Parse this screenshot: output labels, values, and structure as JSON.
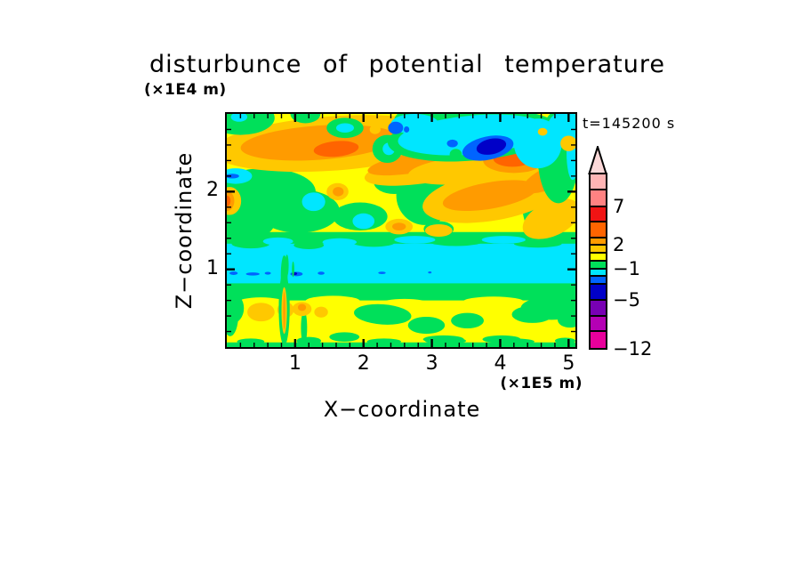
{
  "chart_data": {
    "type": "filled_contour",
    "title": "disturbunce of potential temperature",
    "time_label": "t=145200 s",
    "xlabel": "X−coordinate",
    "ylabel": "Z−coordinate",
    "x_units": "(×1E5 m)",
    "y_units": "(×1E4 m)",
    "xlim": [
      0,
      5.1
    ],
    "ylim": [
      0,
      3.0
    ],
    "x_major_ticks": [
      1,
      2,
      3,
      4,
      5
    ],
    "x_minor_step": 0.2,
    "y_major_ticks": [
      1,
      2
    ],
    "y_minor_step": 0.2,
    "grid": false,
    "levels": [
      -12,
      -9,
      -7,
      -5,
      -3,
      -2,
      -1,
      0,
      1,
      2,
      3,
      5,
      7,
      9,
      11
    ],
    "level_colors": [
      "m3",
      "m2",
      "m1",
      "db",
      "bl",
      "cy",
      "gr",
      "ye",
      "go",
      "or",
      "do",
      "re",
      "sa",
      "pi"
    ],
    "palette": {
      "m3": "#E8009B",
      "m2": "#B400B4",
      "m1": "#7800B4",
      "db": "#0000C8",
      "bl": "#0064FF",
      "cy": "#00E6FF",
      "gr": "#00E05A",
      "ye": "#FFFF00",
      "go": "#FFC800",
      "or": "#FF9B00",
      "do": "#FF6400",
      "re": "#F01414",
      "sa": "#FF8282",
      "pi": "#FFB4B4",
      "tip": "#FBD8D8"
    },
    "colorbar": {
      "arrow_color": "tip",
      "segments": [
        {
          "c": "pi",
          "h": 18
        },
        {
          "c": "sa",
          "h": 19
        },
        {
          "c": "re",
          "h": 17
        },
        {
          "c": "do",
          "h": 18
        },
        {
          "c": "or",
          "h": 8
        },
        {
          "c": "go",
          "h": 9
        },
        {
          "c": "ye",
          "h": 9
        },
        {
          "c": "gr",
          "h": 9
        },
        {
          "c": "cy",
          "h": 8
        },
        {
          "c": "bl",
          "h": 9
        },
        {
          "c": "db",
          "h": 18
        },
        {
          "c": "m1",
          "h": 18
        },
        {
          "c": "m2",
          "h": 17
        },
        {
          "c": "m3",
          "h": 20
        }
      ],
      "labels": [
        {
          "t": "7",
          "b": 2
        },
        {
          "t": "2",
          "b": 5
        },
        {
          "t": "−1",
          "b": 8
        },
        {
          "t": "−5",
          "b": 11
        },
        {
          "t": "−12",
          "b": 14
        }
      ]
    },
    "field_shapes": [
      {
        "s": "r",
        "c": "ye",
        "x": 0,
        "z": 0,
        "w": 5.1,
        "h": 3
      },
      {
        "s": "r",
        "c": "gr",
        "x": 0,
        "z": 0.6,
        "w": 5.1,
        "h": 0.88
      },
      {
        "s": "e",
        "c": "ye",
        "x": 0.5,
        "z": 0.57,
        "rx": 0.35,
        "rz": 0.07
      },
      {
        "s": "e",
        "c": "ye",
        "x": 1.55,
        "z": 0.59,
        "rx": 0.4,
        "rz": 0.07
      },
      {
        "s": "e",
        "c": "ye",
        "x": 2.6,
        "z": 0.56,
        "rx": 0.35,
        "rz": 0.06
      },
      {
        "s": "e",
        "c": "ye",
        "x": 3.9,
        "z": 0.58,
        "rx": 0.45,
        "rz": 0.07
      },
      {
        "s": "e",
        "c": "gr",
        "x": 0.07,
        "z": 0.5,
        "rx": 0.18,
        "rz": 0.2
      },
      {
        "s": "e",
        "c": "gr",
        "x": 4.75,
        "z": 0.5,
        "rx": 0.45,
        "rz": 0.15
      },
      {
        "s": "r",
        "c": "cy",
        "x": 0,
        "z": 0.82,
        "w": 5.1,
        "h": 0.51
      },
      {
        "s": "e",
        "c": "gr",
        "x": 0.35,
        "z": 1.33,
        "rx": 0.28,
        "rz": 0.06
      },
      {
        "s": "e",
        "c": "gr",
        "x": 1.2,
        "z": 1.31,
        "rx": 0.22,
        "rz": 0.05
      },
      {
        "s": "e",
        "c": "gr",
        "x": 2.15,
        "z": 1.34,
        "rx": 0.3,
        "rz": 0.05
      },
      {
        "s": "e",
        "c": "gr",
        "x": 3.35,
        "z": 1.36,
        "rx": 0.4,
        "rz": 0.06
      },
      {
        "s": "e",
        "c": "gr",
        "x": 4.55,
        "z": 1.33,
        "rx": 0.35,
        "rz": 0.05
      },
      {
        "s": "e",
        "c": "cy",
        "x": 0.75,
        "z": 1.36,
        "rx": 0.22,
        "rz": 0.05
      },
      {
        "s": "e",
        "c": "cy",
        "x": 1.65,
        "z": 1.35,
        "rx": 0.25,
        "rz": 0.05
      },
      {
        "s": "e",
        "c": "cy",
        "x": 2.75,
        "z": 1.38,
        "rx": 0.3,
        "rz": 0.05
      },
      {
        "s": "e",
        "c": "cy",
        "x": 4.05,
        "z": 1.38,
        "rx": 0.32,
        "rz": 0.05
      },
      {
        "s": "e",
        "c": "bl",
        "x": 0.1,
        "z": 0.95,
        "rx": 0.06,
        "rz": 0.022
      },
      {
        "s": "e",
        "c": "bl",
        "x": 0.38,
        "z": 0.94,
        "rx": 0.1,
        "rz": 0.02
      },
      {
        "s": "e",
        "c": "bl",
        "x": 0.6,
        "z": 0.95,
        "rx": 0.045,
        "rz": 0.018
      },
      {
        "s": "e",
        "c": "bl",
        "x": 1.02,
        "z": 0.94,
        "rx": 0.09,
        "rz": 0.028
      },
      {
        "s": "e",
        "c": "db",
        "x": 0.99,
        "z": 0.945,
        "rx": 0.04,
        "rz": 0.018
      },
      {
        "s": "e",
        "c": "bl",
        "x": 1.38,
        "z": 0.95,
        "rx": 0.05,
        "rz": 0.02
      },
      {
        "s": "e",
        "c": "bl",
        "x": 2.27,
        "z": 0.955,
        "rx": 0.055,
        "rz": 0.016
      },
      {
        "s": "e",
        "c": "bl",
        "x": 2.97,
        "z": 0.96,
        "rx": 0.025,
        "rz": 0.013
      },
      {
        "s": "e",
        "c": "gr",
        "x": 0.88,
        "z": 1.05,
        "rx": 0.025,
        "rz": 0.14
      },
      {
        "s": "e",
        "c": "gr",
        "x": 0.97,
        "z": 1.0,
        "rx": 0.018,
        "rz": 0.1
      },
      {
        "s": "e",
        "c": "bl",
        "x": 0.84,
        "z": 0.8,
        "rx": 0.018,
        "rz": 0.05
      },
      {
        "s": "r",
        "c": "gr",
        "x": 0,
        "z": 0,
        "w": 5.1,
        "h": 0.06
      },
      {
        "s": "e",
        "c": "gr",
        "x": 0.35,
        "z": 0.07,
        "rx": 0.2,
        "rz": 0.04
      },
      {
        "s": "e",
        "c": "gr",
        "x": 1.2,
        "z": 0.08,
        "rx": 0.18,
        "rz": 0.05
      },
      {
        "s": "e",
        "c": "gr",
        "x": 2.3,
        "z": 0.07,
        "rx": 0.25,
        "rz": 0.04
      },
      {
        "s": "e",
        "c": "gr",
        "x": 3.2,
        "z": 0.08,
        "rx": 0.3,
        "rz": 0.045
      },
      {
        "s": "e",
        "c": "gr",
        "x": 4.2,
        "z": 0.07,
        "rx": 0.3,
        "rz": 0.04
      },
      {
        "s": "e",
        "c": "gr",
        "x": 4.95,
        "z": 0.08,
        "rx": 0.15,
        "rz": 0.04
      },
      {
        "s": "e",
        "c": "gr",
        "x": 2.28,
        "z": 0.42,
        "rx": 0.42,
        "rz": 0.13,
        "a": 4
      },
      {
        "s": "e",
        "c": "gr",
        "x": 2.92,
        "z": 0.28,
        "rx": 0.27,
        "rz": 0.11
      },
      {
        "s": "e",
        "c": "gr",
        "x": 3.52,
        "z": 0.34,
        "rx": 0.24,
        "rz": 0.1
      },
      {
        "s": "e",
        "c": "gr",
        "x": 4.47,
        "z": 0.42,
        "rx": 0.3,
        "rz": 0.11
      },
      {
        "s": "e",
        "c": "gr",
        "x": 5.02,
        "z": 0.35,
        "rx": 0.18,
        "rz": 0.1
      },
      {
        "s": "e",
        "c": "gr",
        "x": 1.72,
        "z": 0.13,
        "rx": 0.22,
        "rz": 0.06
      },
      {
        "s": "e",
        "c": "gr",
        "x": 3.17,
        "z": 0.1,
        "rx": 0.3,
        "rz": 0.05
      },
      {
        "s": "e",
        "c": "gr",
        "x": 4.02,
        "z": 0.1,
        "rx": 0.28,
        "rz": 0.05
      },
      {
        "s": "e",
        "c": "gr",
        "x": 1.13,
        "z": 0.25,
        "rx": 0.045,
        "rz": 0.22
      },
      {
        "s": "e",
        "c": "gr",
        "x": 0.05,
        "z": 0.42,
        "rx": 0.12,
        "rz": 0.28
      },
      {
        "s": "e",
        "c": "go",
        "x": 0.5,
        "z": 0.45,
        "rx": 0.2,
        "rz": 0.12
      },
      {
        "s": "e",
        "c": "go",
        "x": 0.86,
        "z": 0.48,
        "rx": 0.12,
        "rz": 0.1
      },
      {
        "s": "e",
        "c": "go",
        "x": 1.1,
        "z": 0.49,
        "rx": 0.14,
        "rz": 0.09
      },
      {
        "s": "e",
        "c": "or",
        "x": 1.1,
        "z": 0.51,
        "rx": 0.06,
        "rz": 0.045
      },
      {
        "s": "e",
        "c": "go",
        "x": 1.38,
        "z": 0.45,
        "rx": 0.1,
        "rz": 0.07
      },
      {
        "s": "e",
        "c": "gr",
        "x": 0.84,
        "z": 0.5,
        "rx": 0.08,
        "rz": 0.48
      },
      {
        "s": "e",
        "c": "gr",
        "x": 0.84,
        "z": 0.92,
        "rx": 0.05,
        "rz": 0.26
      },
      {
        "s": "e",
        "c": "go",
        "x": 0.84,
        "z": 0.47,
        "rx": 0.04,
        "rz": 0.3
      },
      {
        "s": "e",
        "c": "or",
        "x": 0.84,
        "z": 0.47,
        "rx": 0.016,
        "rz": 0.24
      },
      {
        "s": "e",
        "c": "gr",
        "x": 0.55,
        "z": 2.0,
        "rx": 0.75,
        "rz": 0.3
      },
      {
        "s": "e",
        "c": "gr",
        "x": 1.05,
        "z": 1.75,
        "rx": 0.6,
        "rz": 0.28
      },
      {
        "s": "e",
        "c": "gr",
        "x": 0.25,
        "z": 1.6,
        "rx": 0.45,
        "rz": 0.22
      },
      {
        "s": "e",
        "c": "gr",
        "x": 1.95,
        "z": 1.68,
        "rx": 0.4,
        "rz": 0.18
      },
      {
        "s": "e",
        "c": "gr",
        "x": 2.9,
        "z": 1.95,
        "rx": 0.42,
        "rz": 0.38
      },
      {
        "s": "e",
        "c": "gr",
        "x": 2.45,
        "z": 2.12,
        "rx": 0.3,
        "rz": 0.15
      },
      {
        "s": "e",
        "c": "gr",
        "x": 4.6,
        "z": 1.85,
        "rx": 0.28,
        "rz": 0.45
      },
      {
        "s": "e",
        "c": "gr",
        "x": 3.1,
        "z": 1.52,
        "rx": 0.22,
        "rz": 0.1
      },
      {
        "s": "e",
        "c": "cy",
        "x": 0.13,
        "z": 2.2,
        "rx": 0.24,
        "rz": 0.1
      },
      {
        "s": "e",
        "c": "bl",
        "x": 0.08,
        "z": 2.2,
        "rx": 0.1,
        "rz": 0.03
      },
      {
        "s": "e",
        "c": "cy",
        "x": 1.27,
        "z": 1.87,
        "rx": 0.17,
        "rz": 0.12
      },
      {
        "s": "e",
        "c": "cy",
        "x": 2.0,
        "z": 1.62,
        "rx": 0.16,
        "rz": 0.1
      },
      {
        "s": "e",
        "c": "go",
        "x": 0.04,
        "z": 1.88,
        "rx": 0.17,
        "rz": 0.18
      },
      {
        "s": "e",
        "c": "or",
        "x": 0.0,
        "z": 1.88,
        "rx": 0.11,
        "rz": 0.13
      },
      {
        "s": "e",
        "c": "do",
        "x": 0.0,
        "z": 1.88,
        "rx": 0.055,
        "rz": 0.07
      },
      {
        "s": "e",
        "c": "go",
        "x": 1.62,
        "z": 2.0,
        "rx": 0.16,
        "rz": 0.11
      },
      {
        "s": "e",
        "c": "or",
        "x": 1.63,
        "z": 2.0,
        "rx": 0.08,
        "rz": 0.06
      },
      {
        "s": "e",
        "c": "go",
        "x": 2.52,
        "z": 1.55,
        "rx": 0.2,
        "rz": 0.1
      },
      {
        "s": "e",
        "c": "or",
        "x": 2.52,
        "z": 1.55,
        "rx": 0.1,
        "rz": 0.05
      },
      {
        "s": "e",
        "c": "go",
        "x": 3.9,
        "z": 1.95,
        "rx": 1.05,
        "rz": 0.32,
        "a": -10
      },
      {
        "s": "e",
        "c": "go",
        "x": 4.75,
        "z": 1.65,
        "rx": 0.45,
        "rz": 0.22,
        "a": -25
      },
      {
        "s": "e",
        "c": "or",
        "x": 3.85,
        "z": 1.95,
        "rx": 0.7,
        "rz": 0.17,
        "a": -10
      },
      {
        "s": "e",
        "c": "or",
        "x": 4.72,
        "z": 2.18,
        "rx": 0.42,
        "rz": 0.14,
        "a": -25
      },
      {
        "s": "e",
        "c": "go",
        "x": 4.9,
        "z": 2.33,
        "rx": 0.28,
        "rz": 0.2
      },
      {
        "s": "e",
        "c": "or",
        "x": 4.95,
        "z": 2.28,
        "rx": 0.1,
        "rz": 0.07
      },
      {
        "s": "e",
        "c": "go",
        "x": 3.1,
        "z": 1.5,
        "rx": 0.2,
        "rz": 0.08
      },
      {
        "s": "e",
        "c": "go",
        "x": 1.55,
        "z": 2.62,
        "rx": 1.75,
        "rz": 0.35,
        "a": -4
      },
      {
        "s": "e",
        "c": "go",
        "x": 3.05,
        "z": 2.33,
        "rx": 1.05,
        "rz": 0.2,
        "a": -10
      },
      {
        "s": "e",
        "c": "or",
        "x": 1.35,
        "z": 2.63,
        "rx": 1.15,
        "rz": 0.22,
        "a": -4
      },
      {
        "s": "e",
        "c": "or",
        "x": 2.8,
        "z": 2.38,
        "rx": 0.75,
        "rz": 0.13,
        "a": -10
      },
      {
        "s": "e",
        "c": "do",
        "x": 1.6,
        "z": 2.55,
        "rx": 0.33,
        "rz": 0.1,
        "a": -5
      },
      {
        "s": "e",
        "c": "go",
        "x": 3.55,
        "z": 2.28,
        "rx": 0.9,
        "rz": 0.18,
        "a": -5
      },
      {
        "s": "e",
        "c": "or",
        "x": 4.2,
        "z": 2.4,
        "rx": 0.45,
        "rz": 0.16
      },
      {
        "s": "e",
        "c": "do",
        "x": 4.18,
        "z": 2.42,
        "rx": 0.28,
        "rz": 0.1
      },
      {
        "s": "e",
        "c": "gr",
        "x": 0.2,
        "z": 2.95,
        "rx": 0.5,
        "rz": 0.22
      },
      {
        "s": "e",
        "c": "cy",
        "x": 0.18,
        "z": 2.96,
        "rx": 0.12,
        "rz": 0.06
      },
      {
        "s": "e",
        "c": "gr",
        "x": 1.73,
        "z": 2.82,
        "rx": 0.27,
        "rz": 0.13
      },
      {
        "s": "e",
        "c": "cy",
        "x": 1.73,
        "z": 2.82,
        "rx": 0.13,
        "rz": 0.06
      },
      {
        "s": "e",
        "c": "gr",
        "x": 1.15,
        "z": 3.0,
        "rx": 0.22,
        "rz": 0.12
      },
      {
        "s": "e",
        "c": "gr",
        "x": 2.35,
        "z": 2.55,
        "rx": 0.22,
        "rz": 0.18
      },
      {
        "s": "e",
        "c": "cy",
        "x": 2.37,
        "z": 2.55,
        "rx": 0.09,
        "rz": 0.08
      },
      {
        "s": "e",
        "c": "go",
        "x": 2.17,
        "z": 2.8,
        "rx": 0.08,
        "rz": 0.06
      },
      {
        "s": "e",
        "c": "gr",
        "x": 2.9,
        "z": 2.92,
        "rx": 0.45,
        "rz": 0.18
      },
      {
        "s": "e",
        "c": "gr",
        "x": 3.6,
        "z": 2.72,
        "rx": 1.25,
        "rz": 0.32,
        "a": -5
      },
      {
        "s": "e",
        "c": "gr",
        "x": 4.85,
        "z": 2.45,
        "rx": 0.3,
        "rz": 0.6
      },
      {
        "s": "e",
        "c": "cy",
        "x": 3.6,
        "z": 2.73,
        "rx": 1.1,
        "rz": 0.25,
        "a": -5
      },
      {
        "s": "e",
        "c": "cy",
        "x": 2.75,
        "z": 2.87,
        "rx": 0.35,
        "rz": 0.13
      },
      {
        "s": "e",
        "c": "cy",
        "x": 4.55,
        "z": 2.62,
        "rx": 0.35,
        "rz": 0.32
      },
      {
        "s": "e",
        "c": "cy",
        "x": 4.95,
        "z": 2.85,
        "rx": 0.25,
        "rz": 0.18
      },
      {
        "s": "e",
        "c": "cy",
        "x": 5.06,
        "z": 2.5,
        "rx": 0.09,
        "rz": 0.35
      },
      {
        "s": "e",
        "c": "gr",
        "x": 3.35,
        "z": 2.48,
        "rx": 0.09,
        "rz": 0.07
      },
      {
        "s": "e",
        "c": "bl",
        "x": 2.47,
        "z": 2.82,
        "rx": 0.11,
        "rz": 0.08
      },
      {
        "s": "e",
        "c": "bl",
        "x": 2.63,
        "z": 2.8,
        "rx": 0.04,
        "rz": 0.04
      },
      {
        "s": "e",
        "c": "bl",
        "x": 3.3,
        "z": 2.62,
        "rx": 0.08,
        "rz": 0.05
      },
      {
        "s": "e",
        "c": "bl",
        "x": 3.82,
        "z": 2.56,
        "rx": 0.38,
        "rz": 0.15,
        "a": -12
      },
      {
        "s": "e",
        "c": "db",
        "x": 3.87,
        "z": 2.58,
        "rx": 0.22,
        "rz": 0.1,
        "a": -12
      },
      {
        "s": "e",
        "c": "go",
        "x": 4.62,
        "z": 2.77,
        "rx": 0.07,
        "rz": 0.05
      },
      {
        "s": "e",
        "c": "go",
        "x": 5.0,
        "z": 2.62,
        "rx": 0.12,
        "rz": 0.1
      }
    ]
  }
}
